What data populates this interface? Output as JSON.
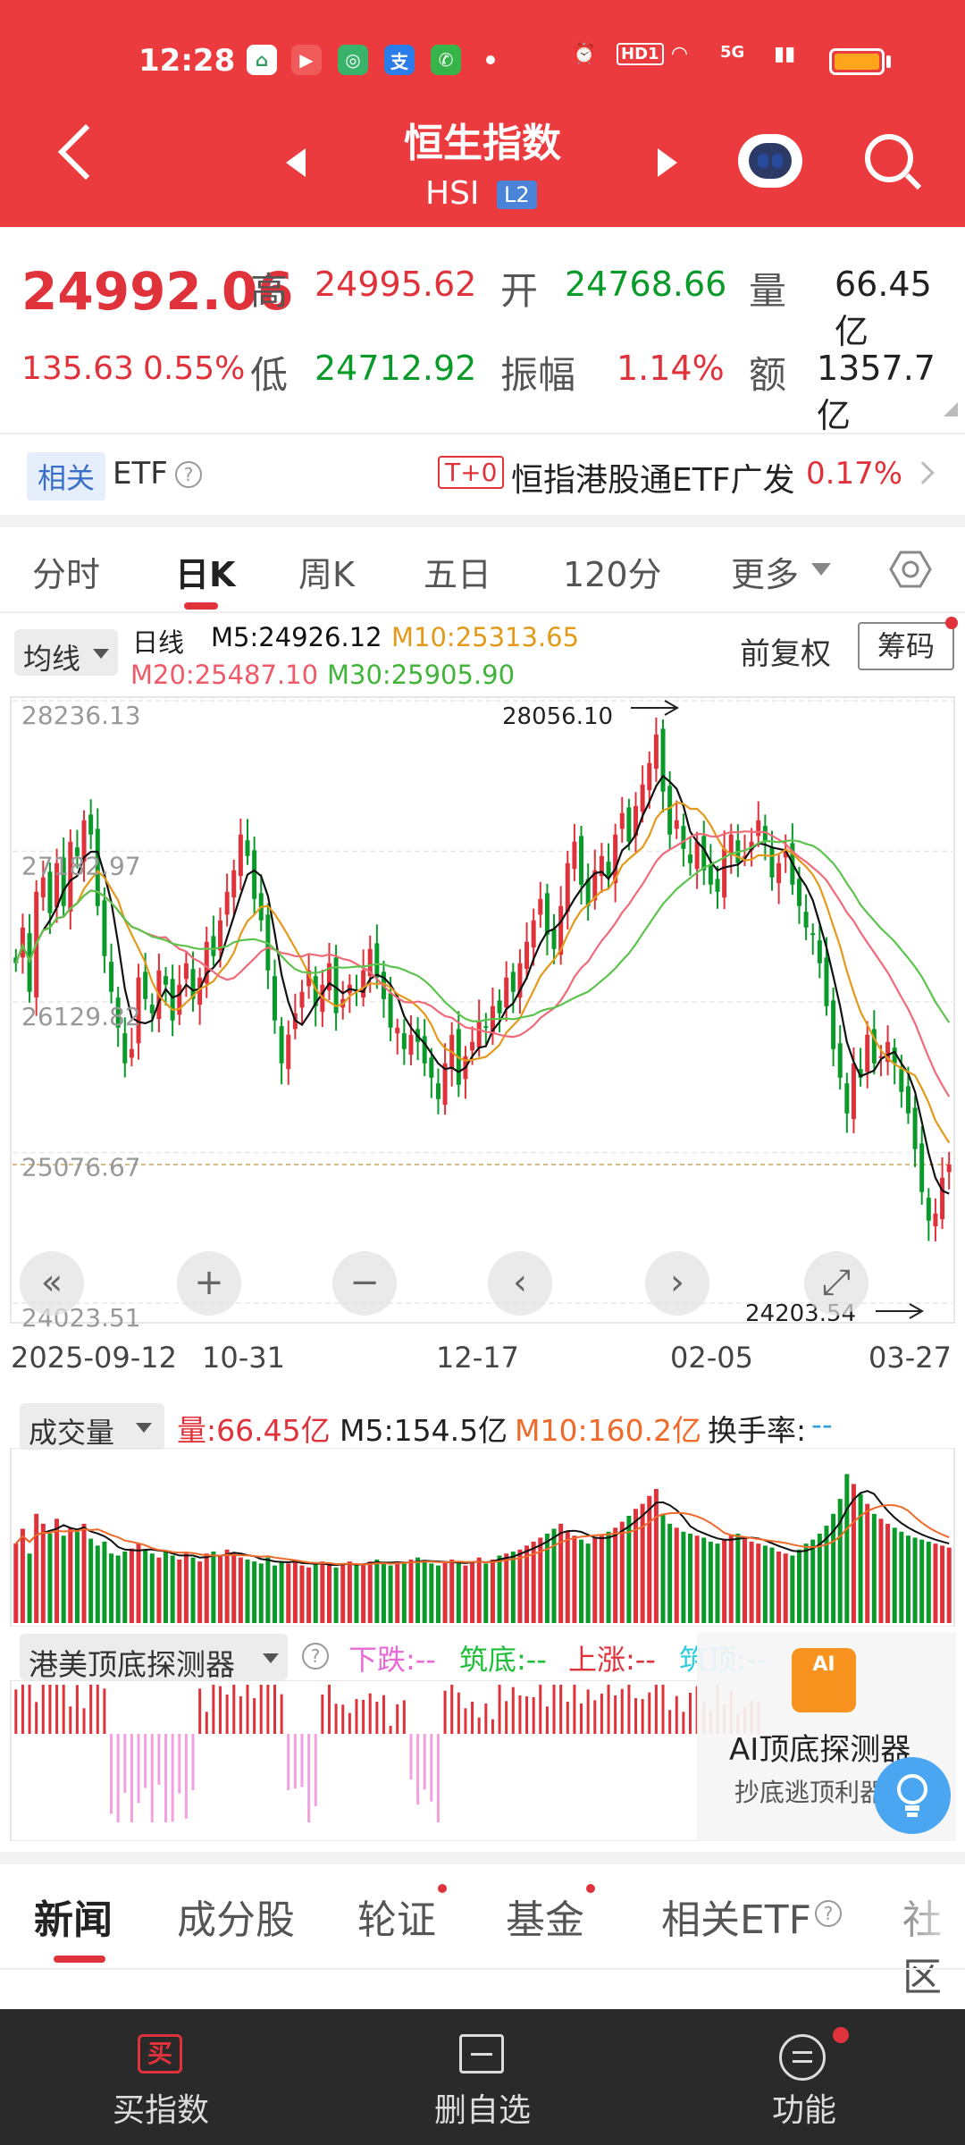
{
  "status_bar": {
    "time": "12:28",
    "hd": "HD1",
    "net": "5G"
  },
  "header": {
    "title": "恒生指数",
    "code": "HSI",
    "level": "L2"
  },
  "quote": {
    "price": "24992.06",
    "change": "135.63",
    "change_pct": "0.55%",
    "high_label": "高",
    "high": "24995.62",
    "open_label": "开",
    "open": "24768.66",
    "volume_label": "量",
    "volume": "66.45亿",
    "low_label": "低",
    "low": "24712.92",
    "amp_label": "振幅",
    "amplitude": "1.14%",
    "amount_label": "额",
    "amount": "1357.7亿"
  },
  "etf": {
    "tag": "相关",
    "label": "ETF",
    "t0": "T+0",
    "name": "恒指港股通ETF广发",
    "pct": "0.17%"
  },
  "period_tabs": [
    "分时",
    "日K",
    "周K",
    "五日",
    "120分",
    "更多"
  ],
  "indicators": {
    "ma_select": "均线",
    "line_label": "日线",
    "m5": "M5:24926.12",
    "m10": "M10:25313.65",
    "m20": "M20:25487.10",
    "m30": "M30:25905.90",
    "fq": "前复权",
    "chip": "筹码"
  },
  "colors": {
    "up": "#e0323a",
    "down": "#0a9a2a",
    "m5": "#111111",
    "m10": "#e39a1a",
    "m20": "#ef6b7a",
    "m30": "#5cc44e",
    "brand": "#ec3b3f"
  },
  "chart_data": {
    "type": "candlestick",
    "y_ticks": [
      "28236.13",
      "27182.97",
      "26129.82",
      "25076.67",
      "24023.51"
    ],
    "ylim": [
      24023.51,
      28236.13
    ],
    "x_ticks": [
      "2025-09-12",
      "10-31",
      "12-17",
      "02-05",
      "03-27"
    ],
    "high_annotation": "28056.10",
    "low_annotation": "24203.54",
    "current": 24992.06,
    "close": [
      26400,
      26650,
      26200,
      26900,
      27000,
      26750,
      27100,
      26800,
      27250,
      27150,
      27400,
      27300,
      26800,
      26450,
      26200,
      25950,
      25700,
      25800,
      26300,
      26150,
      26050,
      26350,
      26250,
      26000,
      26250,
      26400,
      26150,
      26300,
      26550,
      26450,
      26700,
      26900,
      27050,
      27300,
      27150,
      26850,
      26700,
      26350,
      26000,
      25700,
      25900,
      26050,
      26200,
      26350,
      26100,
      26250,
      26400,
      26050,
      26150,
      26250,
      26200,
      26350,
      26500,
      26300,
      26150,
      25950,
      25950,
      25800,
      25900,
      25850,
      25700,
      25600,
      25450,
      25700,
      25900,
      25550,
      25750,
      25850,
      26000,
      25950,
      26100,
      26050,
      26300,
      26200,
      26400,
      26550,
      26700,
      26850,
      26600,
      26500,
      26800,
      27100,
      27250,
      26950,
      26800,
      27050,
      27150,
      27000,
      27300,
      27450,
      27250,
      27500,
      27650,
      27800,
      28000,
      27600,
      27300,
      27400,
      27200,
      27100,
      27250,
      27050,
      26950,
      26900,
      27200,
      27300,
      27100,
      27150,
      27250,
      27400,
      27250,
      27000,
      27100,
      27200,
      26950,
      26800,
      26650,
      26600,
      26400,
      26100,
      25800,
      25600,
      25350,
      25700,
      25600,
      25900,
      25700,
      25750,
      25850,
      25700,
      25500,
      25350,
      25100,
      24800,
      24600,
      24650,
      24900,
      24992
    ],
    "volume": [
      80,
      95,
      70,
      110,
      100,
      90,
      105,
      88,
      96,
      92,
      100,
      85,
      78,
      82,
      70,
      68,
      72,
      75,
      80,
      74,
      70,
      66,
      72,
      68,
      64,
      70,
      66,
      62,
      70,
      72,
      68,
      74,
      70,
      66,
      64,
      62,
      60,
      66,
      58,
      62,
      60,
      64,
      58,
      56,
      60,
      62,
      58,
      56,
      60,
      62,
      58,
      60,
      62,
      64,
      60,
      58,
      62,
      60,
      64,
      66,
      62,
      60,
      58,
      62,
      64,
      60,
      58,
      62,
      66,
      60,
      64,
      68,
      70,
      72,
      74,
      78,
      82,
      86,
      90,
      95,
      100,
      92,
      88,
      84,
      80,
      86,
      88,
      92,
      96,
      102,
      108,
      115,
      120,
      128,
      135,
      110,
      100,
      96,
      92,
      90,
      88,
      86,
      82,
      80,
      84,
      88,
      90,
      86,
      82,
      80,
      78,
      76,
      72,
      70,
      68,
      74,
      80,
      84,
      90,
      98,
      110,
      125,
      150,
      140,
      130,
      120,
      110,
      105,
      100,
      96,
      92,
      88,
      86,
      84,
      82,
      80,
      78,
      76
    ],
    "m5_vol": "M5:154.5亿",
    "m10_vol": "M10:160.2亿"
  },
  "volume_panel": {
    "select": "成交量",
    "vol": "量:66.45亿",
    "m5": "M5:154.5亿",
    "m10": "M10:160.2亿",
    "turnover": "换手率:",
    "turnover_val": "--"
  },
  "detector": {
    "select": "港美顶底探测器",
    "down": "下跌:--",
    "bottom": "筑底:--",
    "up": "上涨:--",
    "top": "筑顶:--",
    "ai_icon": "AI",
    "ai_title": "AI顶底探测器",
    "ai_sub": "抄底逃顶利器"
  },
  "news_tabs": [
    "新闻",
    "成分股",
    "轮证",
    "基金",
    "相关ETF",
    "社区"
  ],
  "bottom_bar": {
    "buy": "买指数",
    "buy_icon": "买",
    "remove": "删自选",
    "func": "功能"
  }
}
